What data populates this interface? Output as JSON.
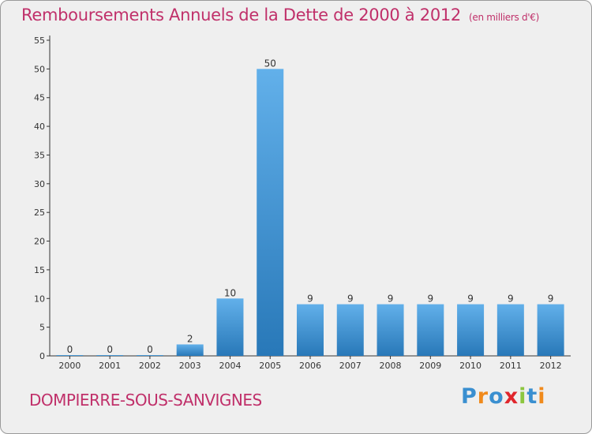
{
  "header": {
    "title": "Remboursements Annuels de la Dette de 2000 à 2012",
    "subtitle": "(en milliers d'€)"
  },
  "footer": {
    "commune": "DOMPIERRE-SOUS-SANVIGNES",
    "brand": "Proxiti",
    "brand_letters": [
      {
        "ch": "P",
        "color": "#3a8fd0"
      },
      {
        "ch": "r",
        "color": "#f08a1c"
      },
      {
        "ch": "o",
        "color": "#3a8fd0"
      },
      {
        "ch": "x",
        "color": "#e0262c"
      },
      {
        "ch": "i",
        "color": "#8cc63f"
      },
      {
        "ch": "t",
        "color": "#3a8fd0"
      },
      {
        "ch": "i",
        "color": "#f08a1c"
      }
    ]
  },
  "colors": {
    "accent": "#c0306a",
    "bar_light": "#62b0ea",
    "bar_dark": "#2878b8",
    "background": "#efefef"
  },
  "chart_data": {
    "type": "bar",
    "categories": [
      "2000",
      "2001",
      "2002",
      "2003",
      "2004",
      "2005",
      "2006",
      "2007",
      "2008",
      "2009",
      "2010",
      "2011",
      "2012"
    ],
    "values": [
      0,
      0,
      0,
      2,
      10,
      50,
      9,
      9,
      9,
      9,
      9,
      9,
      9
    ],
    "title": "Remboursements Annuels de la Dette de 2000 à 2012",
    "subtitle": "(en milliers d'€)",
    "xlabel": "",
    "ylabel": "",
    "ylim": [
      0,
      55
    ],
    "yticks": [
      0,
      5,
      10,
      15,
      20,
      25,
      30,
      35,
      40,
      45,
      50,
      55
    ],
    "grid": false,
    "legend": "none"
  }
}
